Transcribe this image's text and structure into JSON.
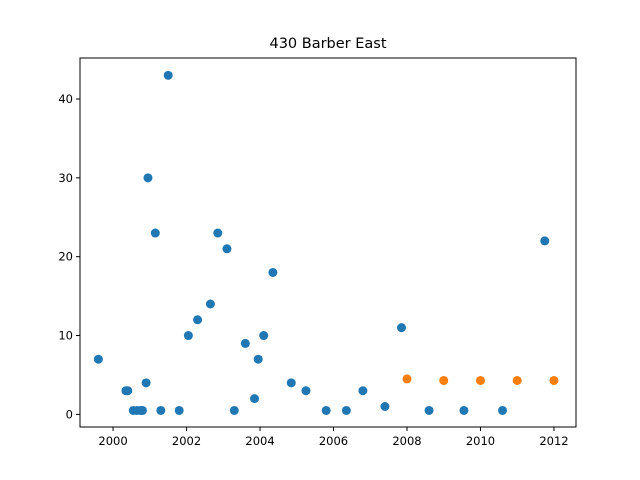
{
  "chart_data": {
    "type": "scatter",
    "title": "430 Barber East",
    "xlabel": "",
    "ylabel": "",
    "xlim": [
      1999.1,
      2012.6
    ],
    "ylim": [
      -1.6,
      45.2
    ],
    "grid": false,
    "x_ticks": [
      {
        "value": 2000,
        "label": "2000"
      },
      {
        "value": 2002,
        "label": "2002"
      },
      {
        "value": 2004,
        "label": "2004"
      },
      {
        "value": 2006,
        "label": "2006"
      },
      {
        "value": 2008,
        "label": "2008"
      },
      {
        "value": 2010,
        "label": "2010"
      },
      {
        "value": 2012,
        "label": "2012"
      }
    ],
    "y_ticks": [
      {
        "value": 0,
        "label": "0"
      },
      {
        "value": 10,
        "label": "10"
      },
      {
        "value": 20,
        "label": "20"
      },
      {
        "value": 30,
        "label": "30"
      },
      {
        "value": 40,
        "label": "40"
      }
    ],
    "series": [
      {
        "color": "#1f77b4",
        "points": [
          {
            "x": 1999.6,
            "y": 7
          },
          {
            "x": 2000.35,
            "y": 3
          },
          {
            "x": 2000.4,
            "y": 3
          },
          {
            "x": 2000.55,
            "y": 0.5
          },
          {
            "x": 2000.65,
            "y": 0.5
          },
          {
            "x": 2000.75,
            "y": 0.5
          },
          {
            "x": 2000.8,
            "y": 0.5
          },
          {
            "x": 2000.9,
            "y": 4
          },
          {
            "x": 2000.95,
            "y": 30
          },
          {
            "x": 2001.15,
            "y": 23
          },
          {
            "x": 2001.3,
            "y": 0.5
          },
          {
            "x": 2001.5,
            "y": 43
          },
          {
            "x": 2001.8,
            "y": 0.5
          },
          {
            "x": 2002.05,
            "y": 10
          },
          {
            "x": 2002.3,
            "y": 12
          },
          {
            "x": 2002.65,
            "y": 14
          },
          {
            "x": 2002.85,
            "y": 23
          },
          {
            "x": 2003.1,
            "y": 21
          },
          {
            "x": 2003.3,
            "y": 0.5
          },
          {
            "x": 2003.6,
            "y": 9
          },
          {
            "x": 2003.85,
            "y": 2
          },
          {
            "x": 2003.95,
            "y": 7
          },
          {
            "x": 2004.1,
            "y": 10
          },
          {
            "x": 2004.35,
            "y": 18
          },
          {
            "x": 2004.85,
            "y": 4
          },
          {
            "x": 2005.25,
            "y": 3
          },
          {
            "x": 2005.8,
            "y": 0.5
          },
          {
            "x": 2006.35,
            "y": 0.5
          },
          {
            "x": 2006.8,
            "y": 3
          },
          {
            "x": 2007.4,
            "y": 1
          },
          {
            "x": 2007.85,
            "y": 11
          },
          {
            "x": 2008.6,
            "y": 0.5
          },
          {
            "x": 2009.55,
            "y": 0.5
          },
          {
            "x": 2010.6,
            "y": 0.5
          },
          {
            "x": 2011.75,
            "y": 22
          }
        ]
      },
      {
        "color": "#ff7f0e",
        "points": [
          {
            "x": 2008.0,
            "y": 4.5
          },
          {
            "x": 2009.0,
            "y": 4.3
          },
          {
            "x": 2010.0,
            "y": 4.3
          },
          {
            "x": 2011.0,
            "y": 4.3
          },
          {
            "x": 2012.0,
            "y": 4.3
          }
        ]
      }
    ]
  }
}
